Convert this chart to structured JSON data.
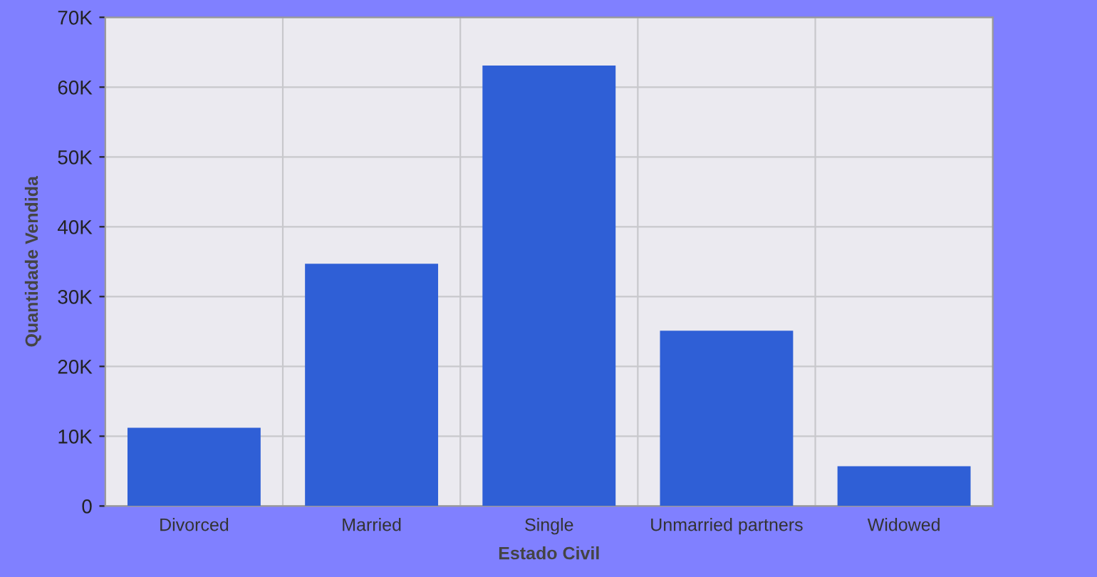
{
  "chart_data": {
    "type": "bar",
    "xlabel": "Estado Civil",
    "ylabel": "Quantidade Vendida",
    "categories": [
      "Divorced",
      "Married",
      "Single",
      "Unmarried partners",
      "Widowed"
    ],
    "values": [
      11200,
      34700,
      63100,
      25100,
      5700
    ],
    "color": "#2f5fd6",
    "ylim": [
      0,
      70000
    ],
    "yticks": [
      {
        "value": 0,
        "label": "0"
      },
      {
        "value": 10000,
        "label": "10K"
      },
      {
        "value": 20000,
        "label": "20K"
      },
      {
        "value": 30000,
        "label": "30K"
      },
      {
        "value": 40000,
        "label": "40K"
      },
      {
        "value": 50000,
        "label": "50K"
      },
      {
        "value": 60000,
        "label": "60K"
      },
      {
        "value": 70000,
        "label": "70K"
      }
    ],
    "grid": true,
    "legend": false
  }
}
